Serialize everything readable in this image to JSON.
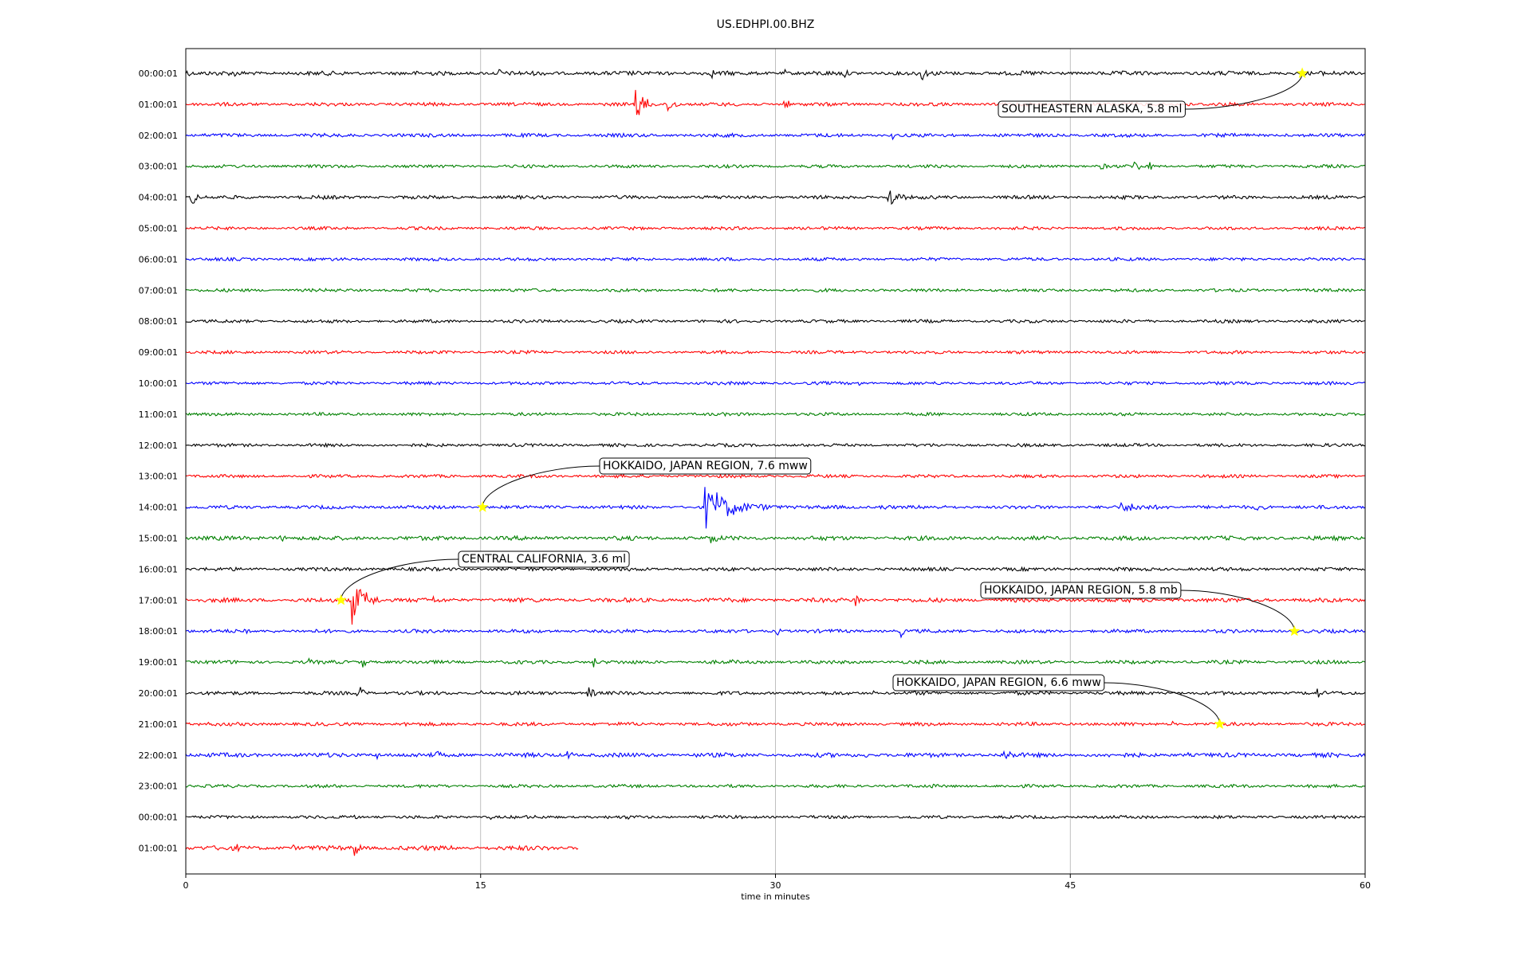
{
  "chart_data": {
    "type": "line",
    "title": "US.EDHPI.00.BHZ",
    "xlabel": "time in minutes",
    "ylabel": "",
    "xlim": [
      0,
      60
    ],
    "xticks": [
      0,
      15,
      30,
      45,
      60
    ],
    "grid_x": true,
    "row_colors": [
      "#000000",
      "#ff0000",
      "#0000ff",
      "#008000"
    ],
    "event_marker_color": "#ffff00",
    "row_labels": [
      "00:00:01",
      "01:00:01",
      "02:00:01",
      "03:00:01",
      "04:00:01",
      "05:00:01",
      "06:00:01",
      "07:00:01",
      "08:00:01",
      "09:00:01",
      "10:00:01",
      "11:00:01",
      "12:00:01",
      "13:00:01",
      "14:00:01",
      "15:00:01",
      "16:00:01",
      "17:00:01",
      "18:00:01",
      "19:00:01",
      "20:00:01",
      "21:00:01",
      "22:00:01",
      "23:00:01",
      "00:00:01",
      "01:00:01"
    ],
    "traces": [
      {
        "noise": 0.12,
        "bursts": [
          [
            0.1,
            0.6,
            0.5
          ],
          [
            2.5,
            0.4,
            0.35
          ],
          [
            13.8,
            0.3,
            0.35
          ],
          [
            16.0,
            0.6,
            0.4
          ],
          [
            22.0,
            0.5,
            0.3
          ],
          [
            24.5,
            0.3,
            0.4
          ],
          [
            26.8,
            0.5,
            0.5
          ],
          [
            30.5,
            0.4,
            0.5
          ],
          [
            33.5,
            0.5,
            0.6
          ],
          [
            37.5,
            0.8,
            0.7
          ]
        ]
      },
      {
        "noise": 0.1,
        "bursts": [
          [
            23.0,
            1.2,
            1.6
          ],
          [
            24.6,
            0.8,
            1.2
          ],
          [
            30.5,
            0.8,
            0.6
          ],
          [
            42.5,
            0.3,
            0.3
          ],
          [
            51.0,
            0.3,
            0.35
          ]
        ]
      },
      {
        "noise": 0.1,
        "bursts": [
          [
            36.0,
            0.5,
            0.4
          ],
          [
            49.2,
            0.2,
            0.3
          ],
          [
            56.0,
            0.3,
            0.3
          ]
        ]
      },
      {
        "noise": 0.09,
        "bursts": [
          [
            46.5,
            1.5,
            0.4
          ],
          [
            48.3,
            0.6,
            0.9
          ],
          [
            49.0,
            0.4,
            0.7
          ]
        ]
      },
      {
        "noise": 0.1,
        "bursts": [
          [
            0.3,
            0.8,
            1.0
          ],
          [
            7.0,
            0.3,
            0.3
          ],
          [
            35.8,
            1.3,
            1.2
          ]
        ]
      },
      {
        "noise": 0.09,
        "bursts": []
      },
      {
        "noise": 0.09,
        "bursts": []
      },
      {
        "noise": 0.09,
        "bursts": []
      },
      {
        "noise": 0.09,
        "bursts": []
      },
      {
        "noise": 0.09,
        "bursts": []
      },
      {
        "noise": 0.09,
        "bursts": [
          [
            34.2,
            0.4,
            0.6
          ]
        ]
      },
      {
        "noise": 0.09,
        "bursts": []
      },
      {
        "noise": 0.09,
        "bursts": [
          [
            13.0,
            0.3,
            0.2
          ]
        ]
      },
      {
        "noise": 0.09,
        "bursts": [
          [
            21.8,
            0.4,
            0.35
          ]
        ]
      },
      {
        "noise": 0.1,
        "bursts": [
          [
            26.7,
            3.5,
            1.8
          ],
          [
            29.0,
            6.0,
            0.35
          ],
          [
            35.5,
            2.5,
            0.3
          ],
          [
            48.0,
            5.0,
            0.45
          ],
          [
            54.5,
            2.0,
            0.35
          ]
        ]
      },
      {
        "noise": 0.12,
        "bursts": [
          [
            5.0,
            3.0,
            0.25
          ],
          [
            26.8,
            1.0,
            0.6
          ]
        ]
      },
      {
        "noise": 0.1,
        "bursts": [
          [
            45.6,
            0.2,
            0.3
          ]
        ]
      },
      {
        "noise": 0.12,
        "bursts": [
          [
            8.6,
            1.8,
            1.9
          ],
          [
            12.6,
            0.3,
            0.5
          ],
          [
            34.1,
            0.5,
            1.3
          ],
          [
            50.0,
            0.3,
            0.4
          ]
        ]
      },
      {
        "noise": 0.1,
        "bursts": [
          [
            3.0,
            0.3,
            0.6
          ],
          [
            4.5,
            0.2,
            0.3
          ],
          [
            30.1,
            0.4,
            0.5
          ],
          [
            36.4,
            0.4,
            0.6
          ]
        ]
      },
      {
        "noise": 0.1,
        "bursts": [
          [
            6.3,
            0.4,
            0.5
          ],
          [
            9.0,
            0.8,
            0.6
          ],
          [
            20.8,
            0.5,
            0.5
          ],
          [
            27.8,
            0.3,
            0.4
          ]
        ]
      },
      {
        "noise": 0.1,
        "bursts": [
          [
            8.8,
            1.0,
            0.7
          ],
          [
            15.0,
            0.2,
            0.5
          ],
          [
            20.5,
            1.0,
            0.7
          ],
          [
            35.0,
            0.3,
            0.3
          ],
          [
            37.0,
            0.4,
            0.4
          ],
          [
            52.5,
            0.3,
            0.5
          ],
          [
            57.6,
            0.4,
            0.6
          ]
        ]
      },
      {
        "noise": 0.1,
        "bursts": [
          [
            11.2,
            0.2,
            0.3
          ],
          [
            13.0,
            0.2,
            0.3
          ],
          [
            14.7,
            0.3,
            0.4
          ],
          [
            50.2,
            0.3,
            0.3
          ]
        ]
      },
      {
        "noise": 0.12,
        "bursts": [
          [
            2.7,
            0.4,
            0.4
          ],
          [
            9.7,
            0.4,
            0.6
          ],
          [
            12.6,
            0.9,
            0.8
          ],
          [
            19.5,
            1.0,
            0.4
          ],
          [
            26.0,
            0.5,
            0.4
          ],
          [
            34.5,
            0.5,
            0.5
          ],
          [
            41.8,
            2.0,
            0.5
          ],
          [
            51.0,
            0.3,
            0.3
          ]
        ]
      },
      {
        "noise": 0.09,
        "bursts": [
          [
            38.0,
            0.3,
            0.3
          ]
        ]
      },
      {
        "noise": 0.09,
        "bursts": [
          [
            8.6,
            0.3,
            0.5
          ],
          [
            15.5,
            0.3,
            0.3
          ],
          [
            22.5,
            0.3,
            0.3
          ]
        ]
      },
      {
        "noise": 0.13,
        "bursts": [
          [
            2.6,
            0.4,
            0.5
          ],
          [
            5.5,
            0.4,
            0.3
          ],
          [
            8.6,
            0.8,
            1.0
          ],
          [
            13.5,
            0.4,
            0.3
          ]
        ],
        "end_min": 20.0
      }
    ],
    "events": [
      {
        "label": "SOUTHEASTERN ALASKA, 5.8 ml",
        "row": 0,
        "minute": 56.8
      },
      {
        "label": "HOKKAIDO, JAPAN REGION, 7.6 mww",
        "row": 14,
        "minute": 15.1
      },
      {
        "label": "CENTRAL CALIFORNIA, 3.6 ml",
        "row": 17,
        "minute": 7.9
      },
      {
        "label": "HOKKAIDO, JAPAN REGION, 5.8 mb",
        "row": 18,
        "minute": 56.4
      },
      {
        "label": "HOKKAIDO, JAPAN REGION, 6.6 mww",
        "row": 21,
        "minute": 52.6
      }
    ]
  }
}
